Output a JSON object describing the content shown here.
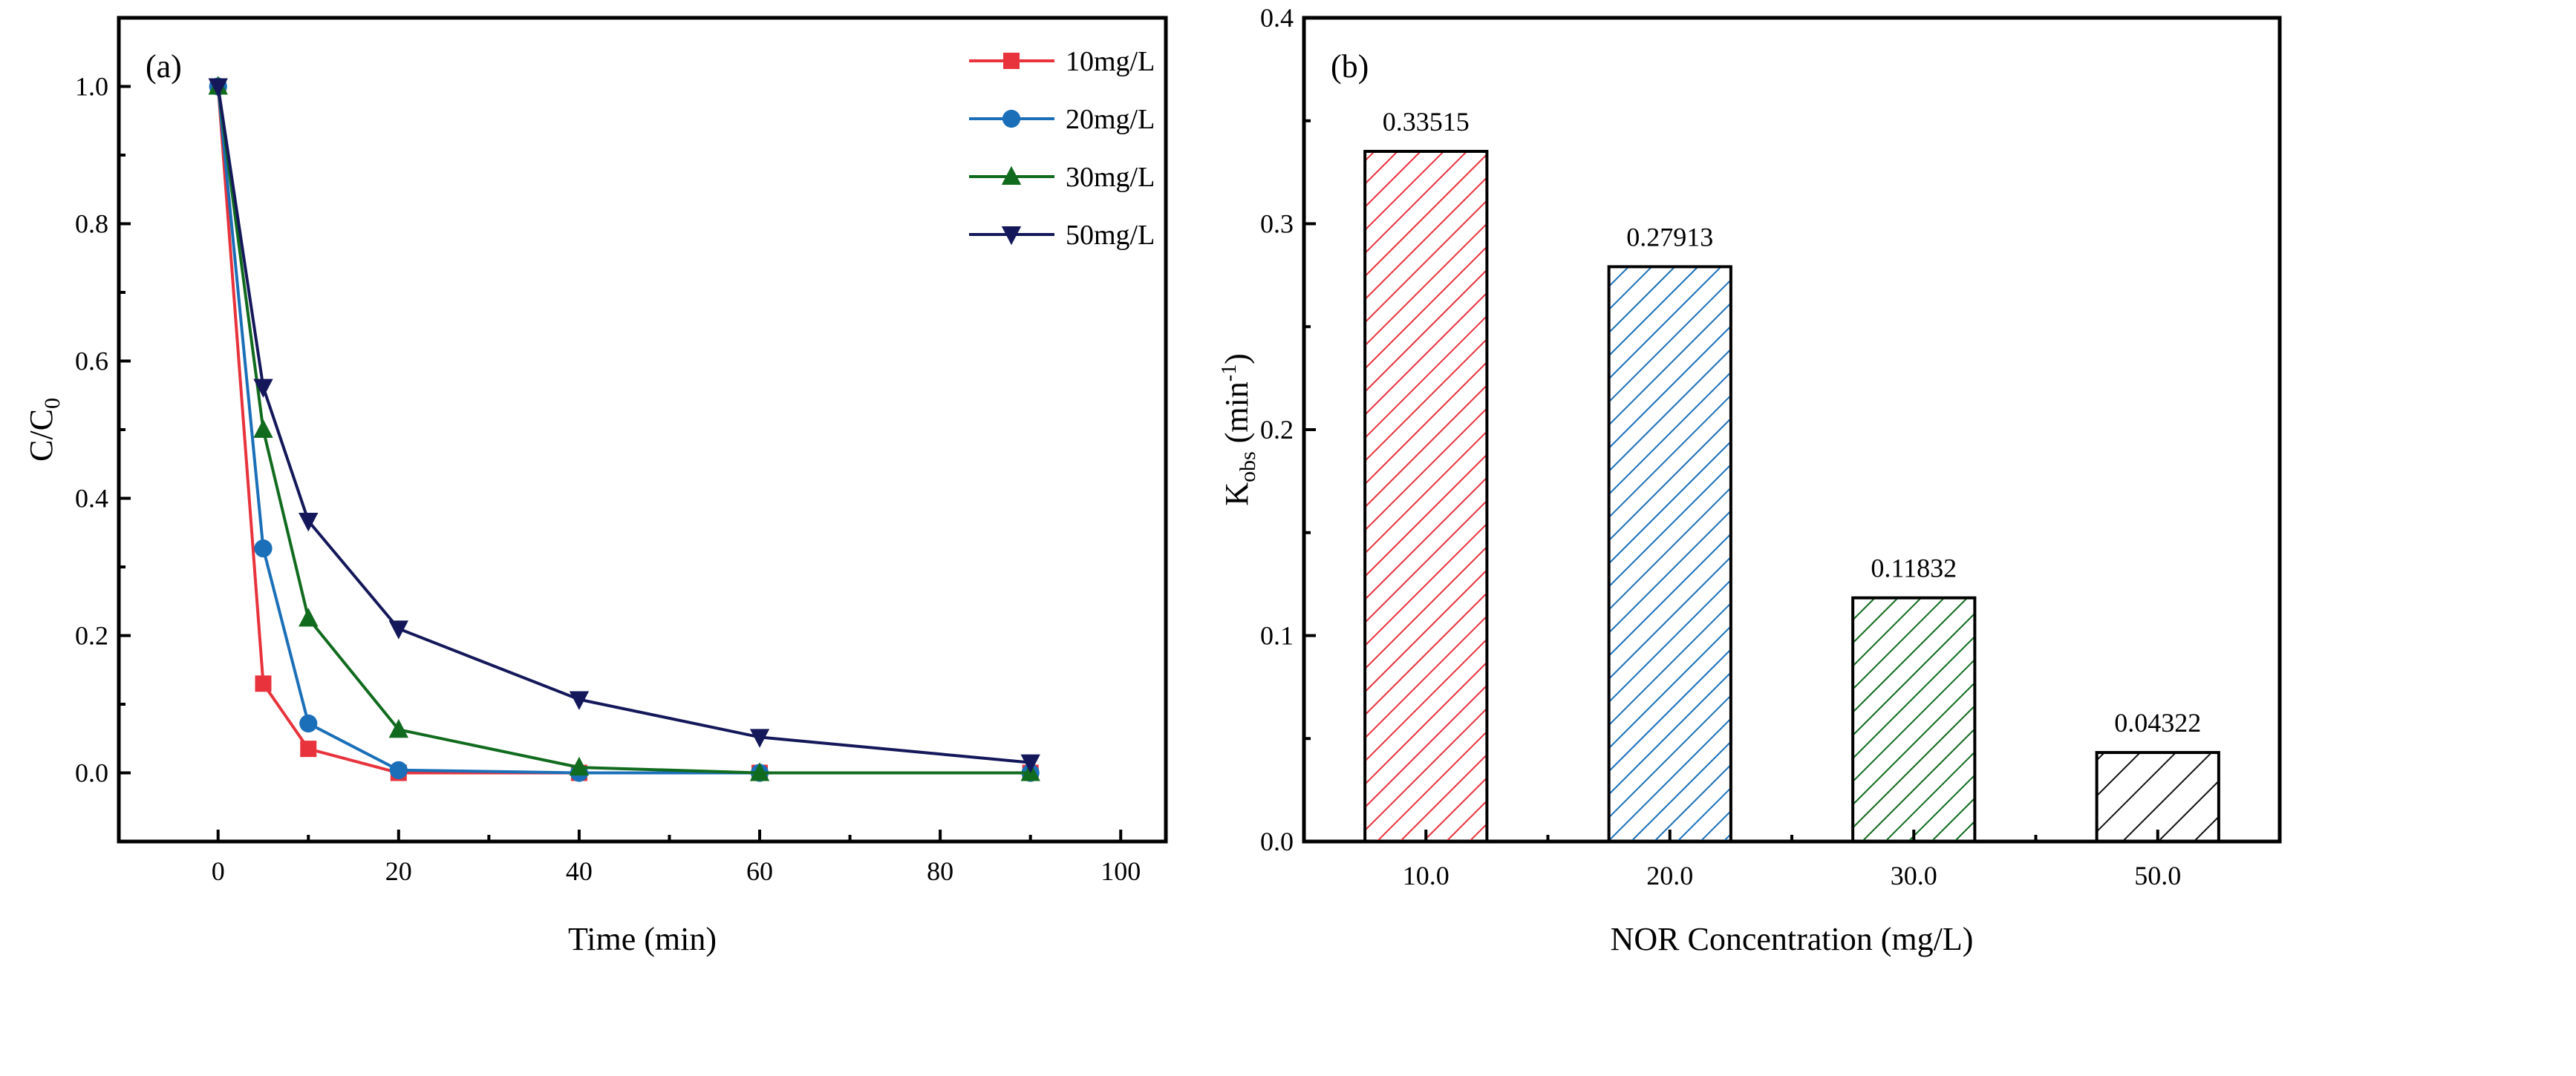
{
  "chart_data": [
    {
      "type": "line",
      "panel_label": "(a)",
      "xlabel": "Time (min)",
      "ylabel": "C/C",
      "ylabel_sub": "0",
      "xlim": [
        -11,
        105
      ],
      "ylim": [
        -0.1,
        1.1
      ],
      "xticks": [
        0,
        20,
        40,
        60,
        80,
        100
      ],
      "yticks": [
        0.0,
        0.2,
        0.4,
        0.6,
        0.8,
        1.0
      ],
      "xtick_labels": [
        "0",
        "20",
        "40",
        "60",
        "80",
        "100"
      ],
      "ytick_labels": [
        "0.0",
        "0.2",
        "0.4",
        "0.6",
        "0.8",
        "1.0"
      ],
      "legend_position": "top-right",
      "x": [
        0,
        5,
        10,
        20,
        40,
        60,
        90
      ],
      "series": [
        {
          "name": "10mg/L",
          "color": "#e8323c",
          "marker": "square",
          "values": [
            1.0,
            0.13,
            0.035,
            0.0,
            0.0,
            0.0,
            0.0
          ]
        },
        {
          "name": "20mg/L",
          "color": "#1a6fb8",
          "marker": "circle",
          "values": [
            1.0,
            0.327,
            0.072,
            0.004,
            0.0,
            0.0,
            0.0
          ]
        },
        {
          "name": "30mg/L",
          "color": "#116b1e",
          "marker": "triangle-up",
          "values": [
            1.0,
            0.5,
            0.225,
            0.063,
            0.008,
            0.0,
            0.0
          ]
        },
        {
          "name": "50mg/L",
          "color": "#14185a",
          "marker": "triangle-down",
          "values": [
            1.0,
            0.562,
            0.367,
            0.21,
            0.107,
            0.052,
            0.015
          ]
        }
      ]
    },
    {
      "type": "bar",
      "panel_label": "(b)",
      "xlabel": "NOR Concentration (mg/L)",
      "ylabel": "K",
      "ylabel_sub": "obs",
      "ylabel_unit": " (min",
      "ylabel_sup": "-1",
      "ylabel_close": ")",
      "ylim": [
        0,
        0.4
      ],
      "yticks": [
        0.0,
        0.1,
        0.2,
        0.3,
        0.4
      ],
      "ytick_labels": [
        "0.0",
        "0.1",
        "0.2",
        "0.3",
        "0.4"
      ],
      "categories": [
        "10.0",
        "20.0",
        "30.0",
        "50.0"
      ],
      "values": [
        0.33515,
        0.27913,
        0.11832,
        0.04322
      ],
      "data_labels": [
        "0.33515",
        "0.27913",
        "0.11832",
        "0.04322"
      ],
      "colors": [
        "#e8323c",
        "#1a6fb8",
        "#116b1e",
        "#111111"
      ]
    }
  ]
}
